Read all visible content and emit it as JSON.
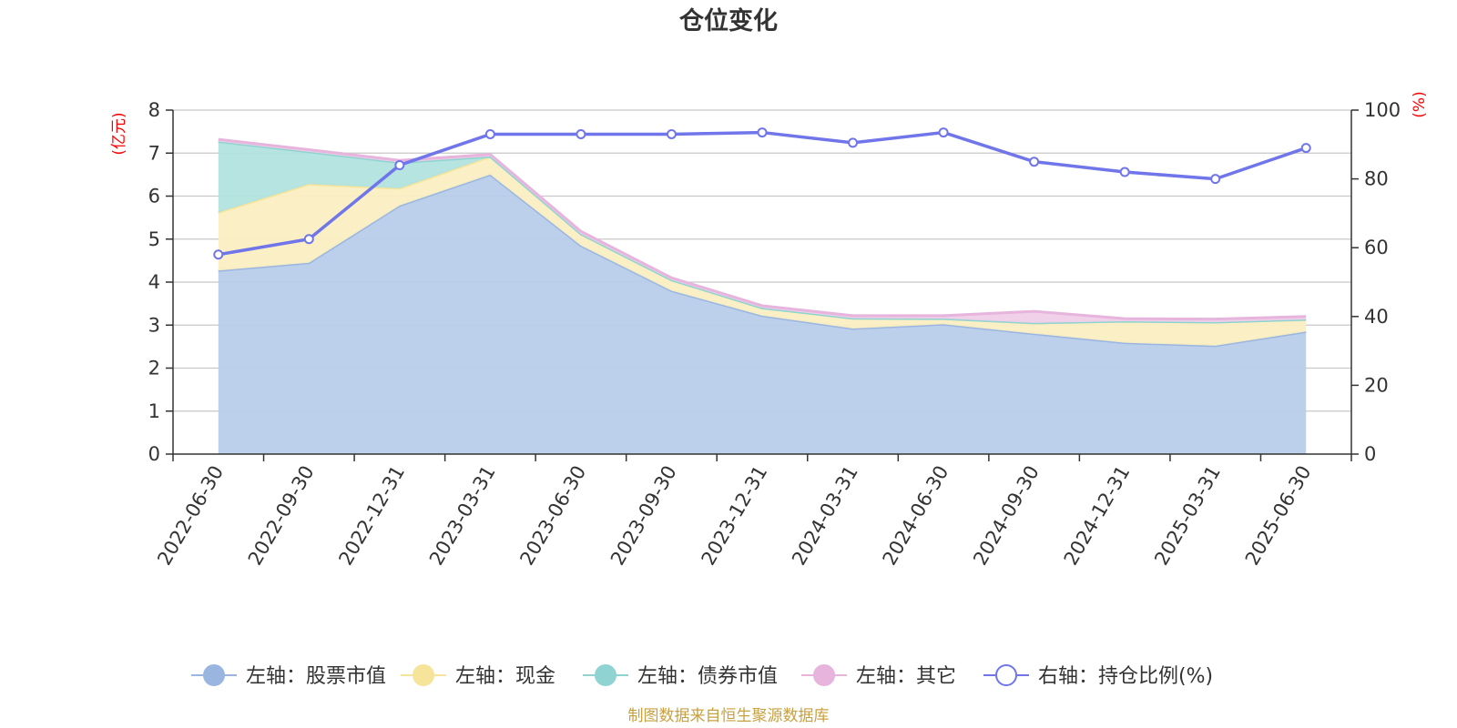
{
  "chart_data": {
    "type": "area",
    "title": "仓位变化",
    "categories": [
      "2022-06-30",
      "2022-09-30",
      "2022-12-31",
      "2023-03-31",
      "2023-06-30",
      "2023-09-30",
      "2023-12-31",
      "2024-03-31",
      "2024-06-30",
      "2024-09-30",
      "2024-12-31",
      "2025-03-31",
      "2025-06-30"
    ],
    "left_axis": {
      "unit": "(亿元)",
      "range": [
        0,
        8
      ],
      "ticks": [
        "0",
        "1",
        "2",
        "3",
        "4",
        "5",
        "6",
        "7",
        "8"
      ]
    },
    "right_axis": {
      "unit": "(%)",
      "range": [
        0,
        100
      ],
      "ticks": [
        "0",
        "20",
        "40",
        "60",
        "80",
        "100"
      ]
    },
    "stack_series": [
      {
        "name": "左轴：股票市值",
        "color": "#9ab6e0",
        "fill": "#b8cdeb",
        "values": [
          4.27,
          4.45,
          5.78,
          6.5,
          4.85,
          3.8,
          3.22,
          2.92,
          3.02,
          2.8,
          2.59,
          2.52,
          2.85
        ]
      },
      {
        "name": "左轴：现金",
        "color": "#f6e49a",
        "fill": "#fbefc2",
        "values": [
          1.35,
          1.83,
          0.4,
          0.42,
          0.27,
          0.25,
          0.18,
          0.24,
          0.13,
          0.25,
          0.5,
          0.55,
          0.28
        ]
      },
      {
        "name": "左轴：债券市值",
        "color": "#8fd4d2",
        "fill": "#b1e3df",
        "values": [
          1.65,
          0.75,
          0.6,
          0,
          0,
          0,
          0,
          0,
          0,
          0,
          0,
          0,
          0
        ]
      },
      {
        "name": "左轴：其它",
        "color": "#e6b4dc",
        "fill": "#f0cfe8",
        "values": [
          0.05,
          0.05,
          0.05,
          0.05,
          0.06,
          0.05,
          0.05,
          0.06,
          0.07,
          0.27,
          0.06,
          0.07,
          0.07
        ]
      }
    ],
    "line_series": {
      "name": "右轴：持仓比例(%)",
      "color": "#7075ea",
      "values": [
        58,
        62.5,
        84,
        93,
        93,
        93,
        93.5,
        90.5,
        93.5,
        85,
        82,
        80,
        89
      ]
    },
    "grid": true,
    "legend_position": "bottom"
  },
  "source_text": "制图数据来自恒生聚源数据库"
}
